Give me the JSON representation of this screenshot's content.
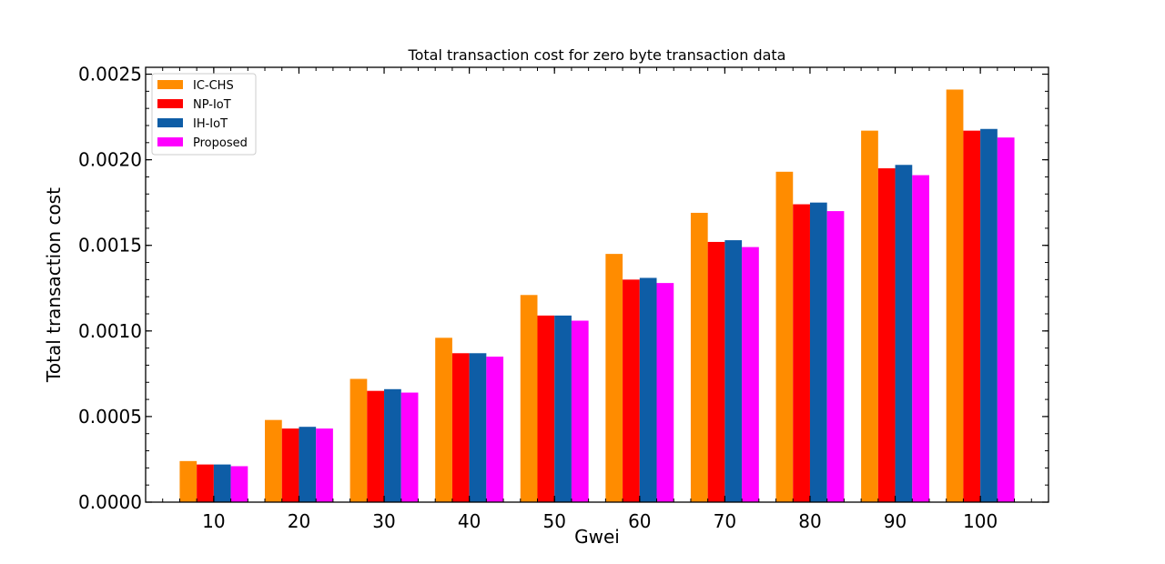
{
  "chart_data": {
    "type": "bar",
    "title": "Total transaction cost for zero byte transaction data",
    "xlabel": "Gwei",
    "ylabel": "Total transaction cost",
    "categories": [
      "10",
      "20",
      "30",
      "40",
      "50",
      "60",
      "70",
      "80",
      "90",
      "100"
    ],
    "ylim": [
      0,
      0.00254
    ],
    "yticks": [
      "0.0000",
      "0.0005",
      "0.0010",
      "0.0015",
      "0.0020",
      "0.0025"
    ],
    "ytick_values": [
      0,
      0.0005,
      0.001,
      0.0015,
      0.002,
      0.0025
    ],
    "grid": false,
    "legend_position": "top-left",
    "series": [
      {
        "name": "IC-CHS",
        "color": "#ff8c00",
        "values": [
          0.00024,
          0.00048,
          0.00072,
          0.00096,
          0.00121,
          0.00145,
          0.00169,
          0.00193,
          0.00217,
          0.00241
        ]
      },
      {
        "name": "NP-IoT",
        "color": "#ff0000",
        "values": [
          0.00022,
          0.00043,
          0.00065,
          0.00087,
          0.00109,
          0.0013,
          0.00152,
          0.00174,
          0.00195,
          0.00217
        ]
      },
      {
        "name": "IH-IoT",
        "color": "#0e5da6",
        "values": [
          0.00022,
          0.00044,
          0.00066,
          0.00087,
          0.00109,
          0.00131,
          0.00153,
          0.00175,
          0.00197,
          0.00218
        ]
      },
      {
        "name": "Proposed",
        "color": "#ff00ff",
        "values": [
          0.00021,
          0.00043,
          0.00064,
          0.00085,
          0.00106,
          0.00128,
          0.00149,
          0.0017,
          0.00191,
          0.00213
        ]
      }
    ]
  }
}
